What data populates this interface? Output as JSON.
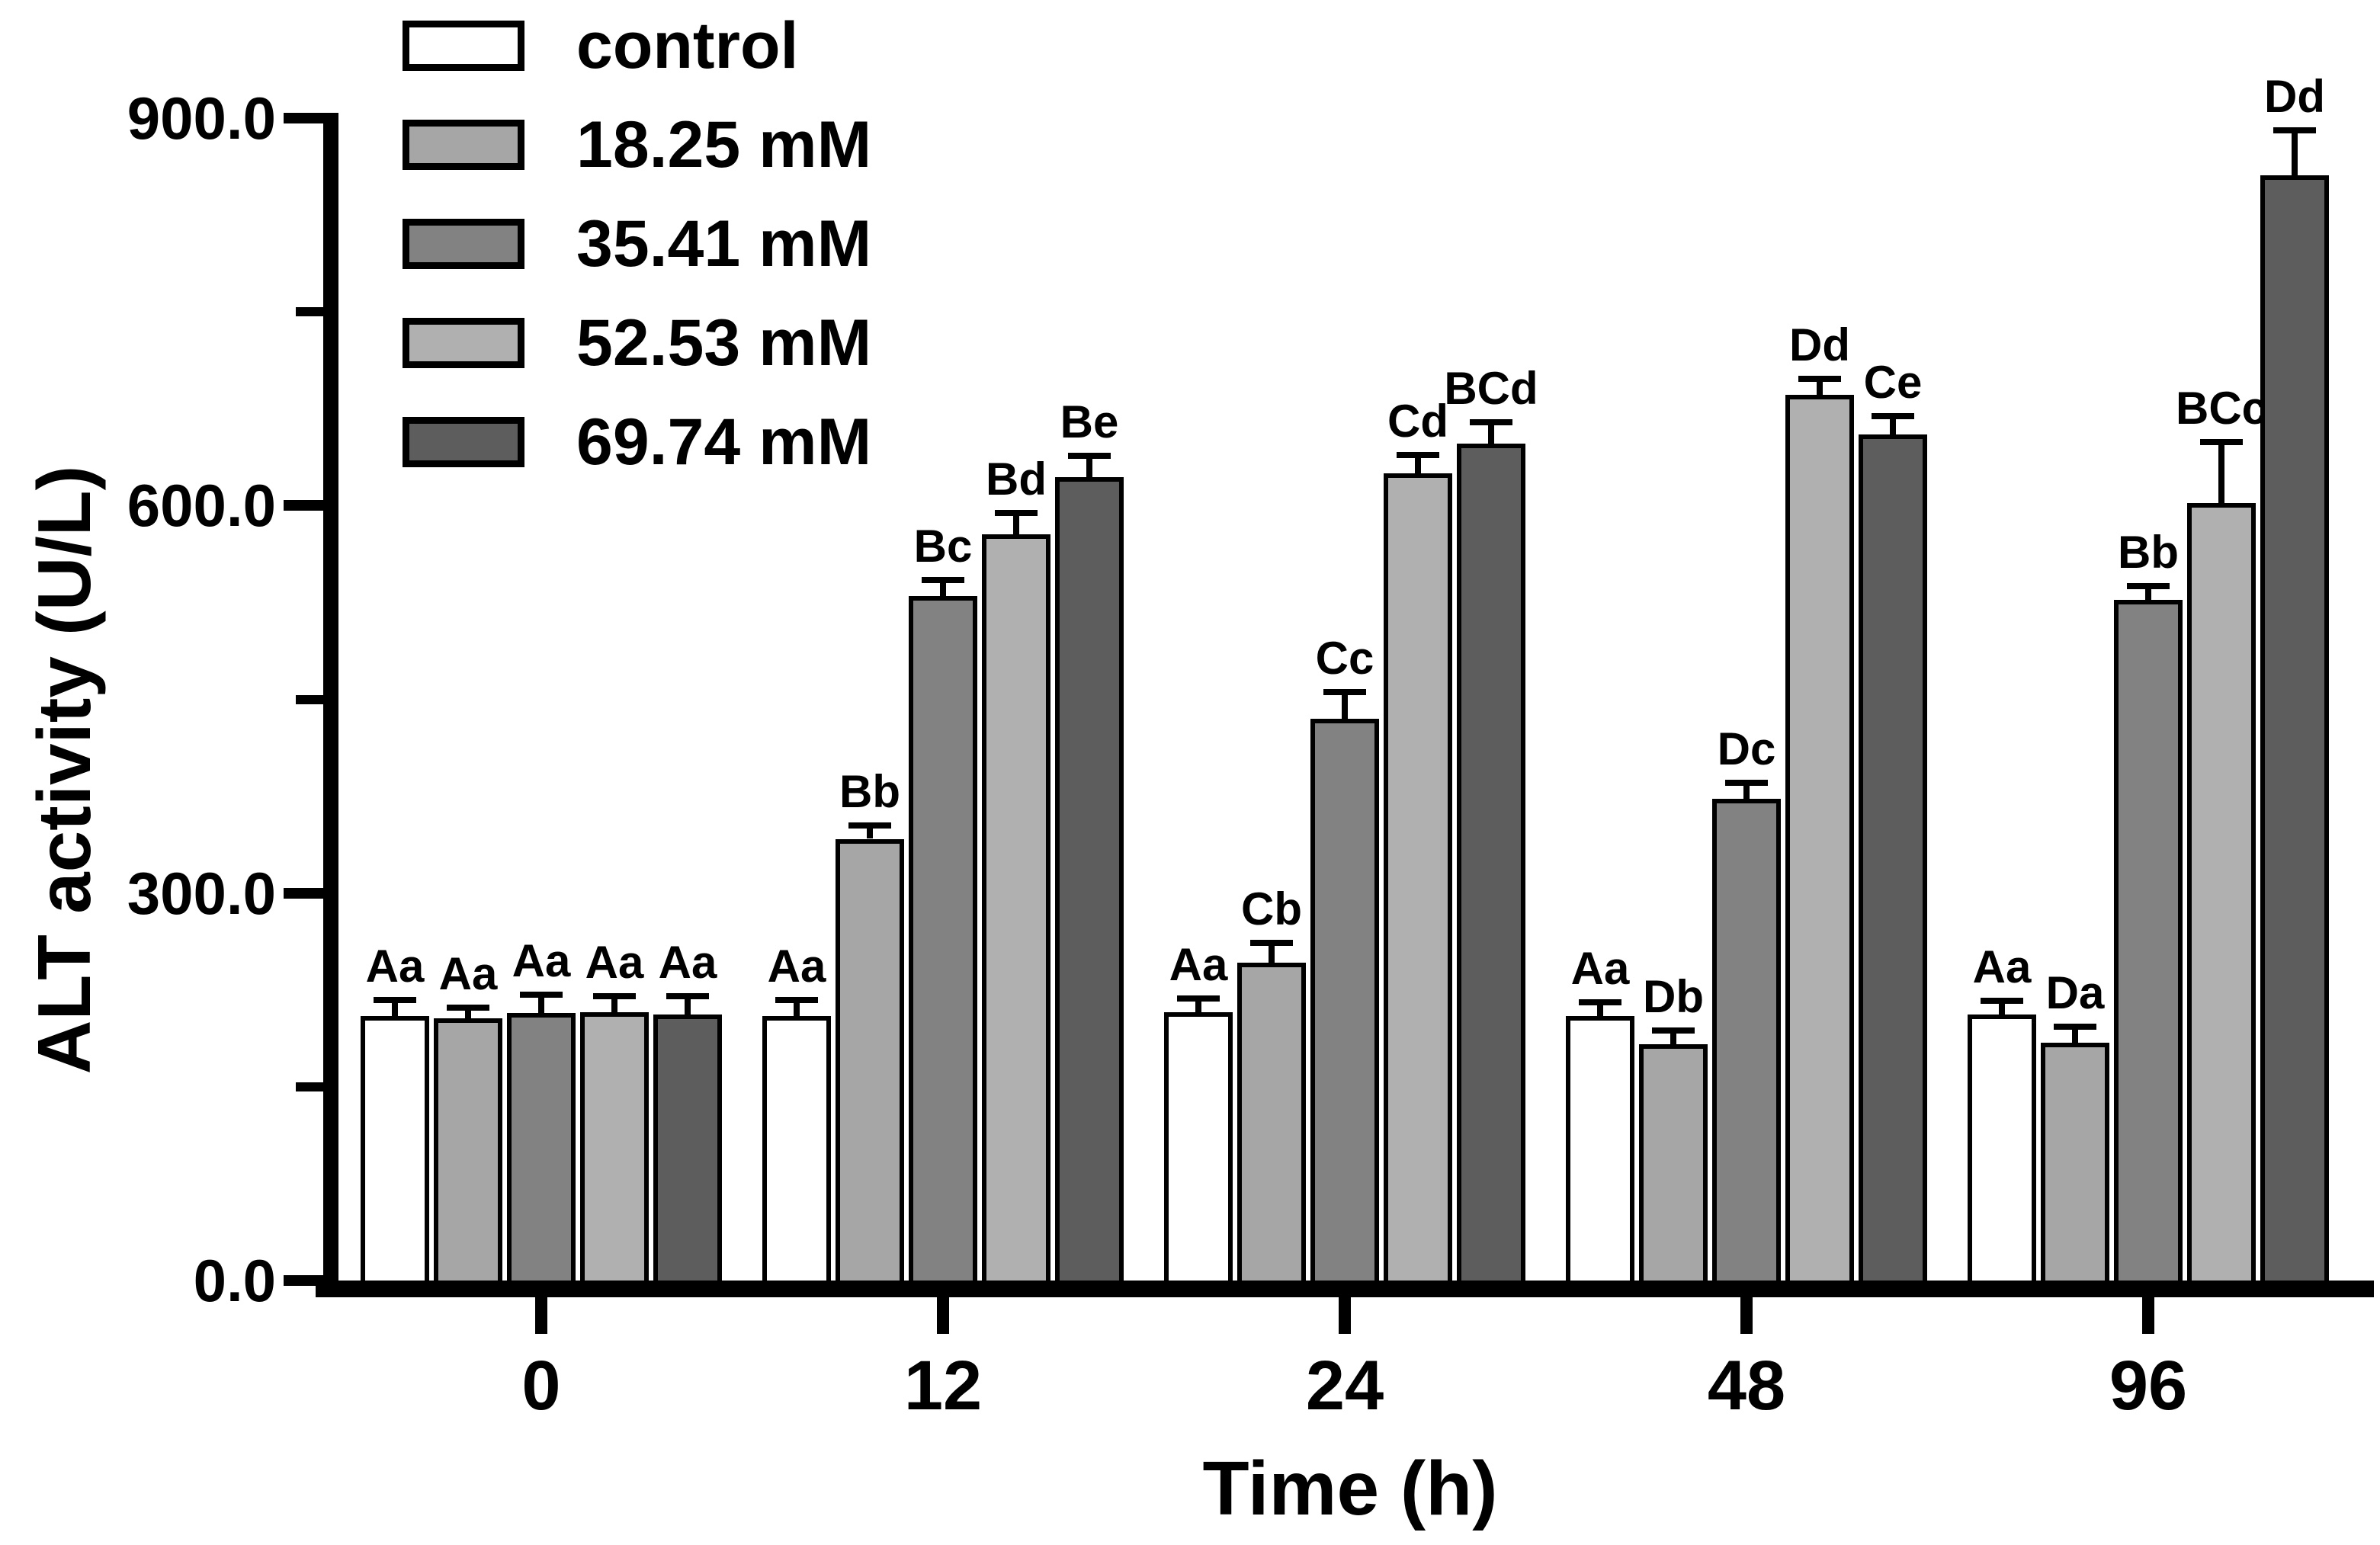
{
  "chart_data": {
    "type": "bar",
    "title": "",
    "xlabel": "Time (h)",
    "ylabel": "ALT activity (U/L)",
    "categories": [
      "0",
      "12",
      "24",
      "48",
      "96"
    ],
    "y_axis": {
      "min": 0,
      "max": 900,
      "major_ticks": [
        {
          "value": 0,
          "label": "0.0"
        },
        {
          "value": 300,
          "label": "300.0"
        },
        {
          "value": 600,
          "label": "600.0"
        },
        {
          "value": 900,
          "label": "900.0"
        }
      ],
      "minor_ticks": [
        150,
        450,
        750
      ]
    },
    "grid": false,
    "legend_position": "top-left",
    "error_bars": "upper",
    "annotation_style": "significance letters above error bars",
    "series": [
      {
        "name": "control",
        "color": "#ffffff",
        "values": [
          205,
          205,
          208,
          205,
          206
        ],
        "errors": [
          10,
          10,
          8,
          8,
          8
        ],
        "letters": [
          "Aa",
          "Aa",
          "Aa",
          "Aa",
          "Aa"
        ]
      },
      {
        "name": "18.25 mM",
        "color": "#a6a6a6",
        "values": [
          203,
          342,
          246,
          183,
          184
        ],
        "errors": [
          6,
          8,
          13,
          8,
          10
        ],
        "letters": [
          "Aa",
          "Bb",
          "Cb",
          "Db",
          "Da"
        ]
      },
      {
        "name": "35.41 mM",
        "color": "#828282",
        "values": [
          207,
          530,
          435,
          373,
          527
        ],
        "errors": [
          12,
          10,
          18,
          10,
          8
        ],
        "letters": [
          "Aa",
          "Bc",
          "Cc",
          "Dc",
          "Bb"
        ]
      },
      {
        "name": "52.53 mM",
        "color": "#b0b0b0",
        "values": [
          208,
          578,
          625,
          686,
          602
        ],
        "errors": [
          10,
          14,
          12,
          10,
          45
        ],
        "letters": [
          "Aa",
          "Bd",
          "Cd",
          "Dd",
          "BCc"
        ]
      },
      {
        "name": "69.74 mM",
        "color": "#5d5d5d",
        "values": [
          206,
          622,
          648,
          655,
          856
        ],
        "errors": [
          12,
          14,
          14,
          12,
          32
        ],
        "letters": [
          "Aa",
          "Be",
          "BCd",
          "Ce",
          "Dd"
        ]
      }
    ]
  }
}
